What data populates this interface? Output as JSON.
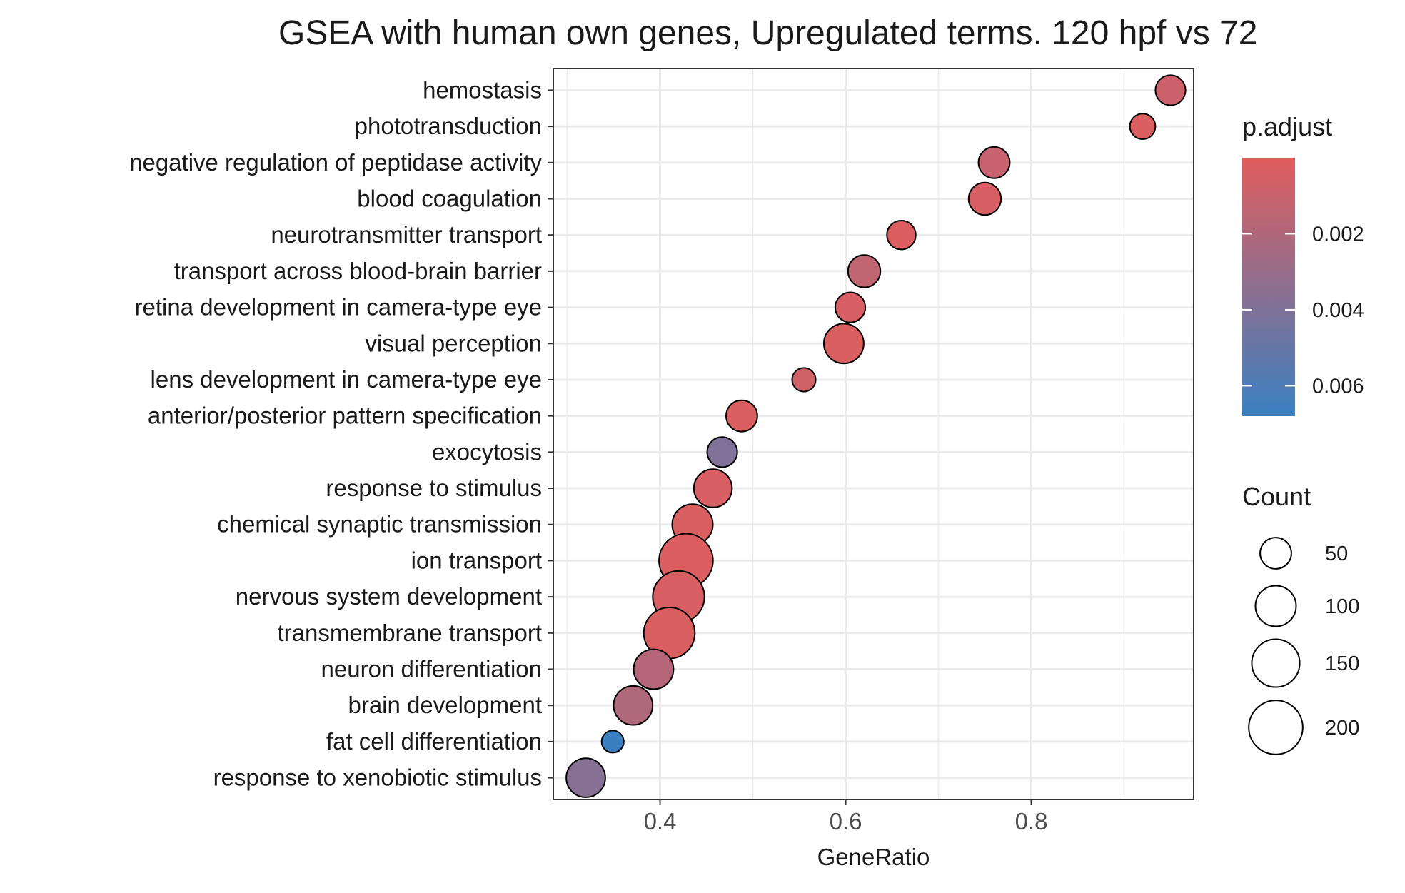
{
  "chart_data": {
    "type": "scatter",
    "title": "GSEA with human own genes, Upregulated terms. 120 hpf vs 72",
    "xlabel": "GeneRatio",
    "ylabel": "",
    "xlim": [
      0.285,
      0.975
    ],
    "xticks": [
      0.4,
      0.6,
      0.8
    ],
    "xtick_labels": [
      "0.4",
      "0.6",
      "0.8"
    ],
    "grid": true,
    "legend_placement": "right",
    "points": [
      {
        "term": "hemostasis",
        "gene_ratio": 0.95,
        "count": 45,
        "p_adjust": 0.001
      },
      {
        "term": "phototransduction",
        "gene_ratio": 0.92,
        "count": 28,
        "p_adjust": 0.0003
      },
      {
        "term": "negative regulation of peptidase activity",
        "gene_ratio": 0.76,
        "count": 50,
        "p_adjust": 0.0012
      },
      {
        "term": "blood coagulation",
        "gene_ratio": 0.75,
        "count": 55,
        "p_adjust": 0.0004
      },
      {
        "term": "neurotransmitter transport",
        "gene_ratio": 0.66,
        "count": 40,
        "p_adjust": 0.0002
      },
      {
        "term": "transport across blood-brain barrier",
        "gene_ratio": 0.62,
        "count": 55,
        "p_adjust": 0.0015
      },
      {
        "term": "retina development in camera-type eye",
        "gene_ratio": 0.605,
        "count": 45,
        "p_adjust": 0.0004
      },
      {
        "term": "visual perception",
        "gene_ratio": 0.598,
        "count": 95,
        "p_adjust": 0.0003
      },
      {
        "term": "lens development in camera-type eye",
        "gene_ratio": 0.555,
        "count": 22,
        "p_adjust": 0.0008
      },
      {
        "term": "anterior/posterior pattern specification",
        "gene_ratio": 0.488,
        "count": 50,
        "p_adjust": 0.0003
      },
      {
        "term": "exocytosis",
        "gene_ratio": 0.467,
        "count": 45,
        "p_adjust": 0.0042
      },
      {
        "term": "response to stimulus",
        "gene_ratio": 0.457,
        "count": 85,
        "p_adjust": 0.0004
      },
      {
        "term": "chemical synaptic transmission",
        "gene_ratio": 0.435,
        "count": 100,
        "p_adjust": 0.0003
      },
      {
        "term": "ion transport",
        "gene_ratio": 0.428,
        "count": 200,
        "p_adjust": 0.0002
      },
      {
        "term": "nervous system development",
        "gene_ratio": 0.42,
        "count": 180,
        "p_adjust": 0.0004
      },
      {
        "term": "transmembrane transport",
        "gene_ratio": 0.41,
        "count": 175,
        "p_adjust": 0.0003
      },
      {
        "term": "neuron differentiation",
        "gene_ratio": 0.393,
        "count": 95,
        "p_adjust": 0.002
      },
      {
        "term": "brain development",
        "gene_ratio": 0.371,
        "count": 90,
        "p_adjust": 0.0022
      },
      {
        "term": "fat cell differentiation",
        "gene_ratio": 0.349,
        "count": 18,
        "p_adjust": 0.0068
      },
      {
        "term": "response to xenobiotic stimulus",
        "gene_ratio": 0.32,
        "count": 90,
        "p_adjust": 0.004
      }
    ],
    "color_legend": {
      "title": "p.adjust",
      "min": 0.0,
      "max": 0.0068,
      "low_color": "#e15d5d",
      "high_color": "#3a80c1",
      "ticks": [
        0.002,
        0.004,
        0.006
      ],
      "tick_labels": [
        "0.002",
        "0.004",
        "0.006"
      ]
    },
    "size_legend": {
      "title": "Count",
      "values": [
        50,
        100,
        150,
        200
      ],
      "labels": [
        "50",
        "100",
        "150",
        "200"
      ]
    },
    "point_outline_color": "#000000"
  }
}
